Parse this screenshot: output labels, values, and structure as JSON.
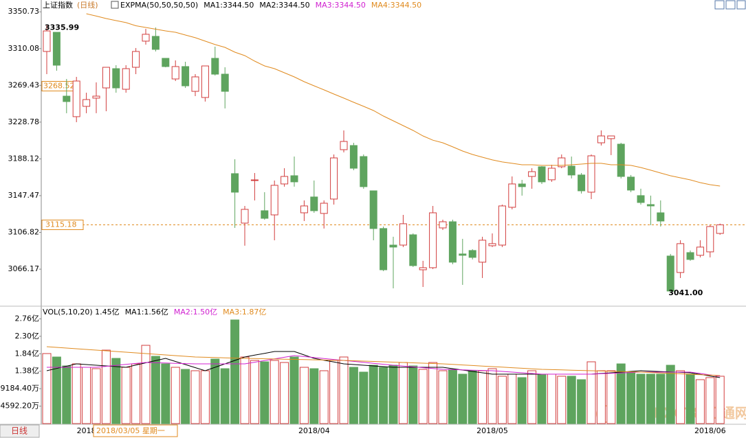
{
  "chart_data": [
    {
      "type": "candlestick",
      "title": "上证指数",
      "period": "(日线)",
      "legend_texts": [
        {
          "text": "EXPMA(50,50,50,50)",
          "color": "#000000"
        },
        {
          "text": "MA1:3344.50",
          "color": "#000000"
        },
        {
          "text": "MA2:3344.50",
          "color": "#000000"
        },
        {
          "text": "MA3:3344.50",
          "color": "#d020d0"
        },
        {
          "text": "MA4:3344.50",
          "color": "#e08a1e"
        }
      ],
      "categories": [
        null,
        null,
        null,
        null,
        "2018",
        null,
        null,
        null,
        null,
        null,
        null,
        null,
        null,
        null,
        null,
        null,
        null,
        null,
        null,
        null,
        null,
        null,
        null,
        null,
        null,
        null,
        null,
        "2018/04",
        null,
        null,
        null,
        null,
        null,
        null,
        null,
        null,
        null,
        null,
        null,
        null,
        null,
        null,
        null,
        null,
        null,
        "2018/05",
        null,
        null,
        null,
        null,
        null,
        null,
        null,
        null,
        null,
        null,
        null,
        null,
        null,
        null,
        null,
        null,
        null,
        null,
        null,
        null,
        null,
        "2018/06",
        null
      ],
      "open": [
        3306.9,
        3328.1,
        3257.5,
        3234.8,
        3246.2,
        3255.3,
        3266.6,
        3287.9,
        3265.1,
        3289.4,
        3318.3,
        3323.6,
        3299.3,
        3276.5,
        3290.2,
        3262.8,
        3256.0,
        3299.3,
        3281.8,
        3171.8,
        3117.1,
        3164.2,
        3130.8,
        3126.2,
        3160.4,
        3169.5,
        3128.5,
        3146.0,
        3127.8,
        3143.7,
        3198.3,
        3202.9,
        3190.7,
        3152.8,
        3111.1,
        3092.8,
        3092.8,
        3104.2,
        3065.5,
        3067.8,
        3111.8,
        3118.6,
        3083.0,
        3086.8,
        3073.9,
        3092.1,
        3092.8,
        3134.6,
        3160.4,
        3168.7,
        3179.4,
        3165.0,
        3179.4,
        3180.1,
        3170.3,
        3151.3,
        3205.9,
        3210.5,
        3204.4,
        3168.0,
        3147.5,
        3137.6,
        3128.5,
        3080.7,
        3062.5,
        3084.5,
        3081.5,
        3085.3,
        3105.7
      ],
      "high": [
        3335.99,
        3328.1,
        3276.5,
        3278.8,
        3261.3,
        3272.7,
        3289.4,
        3291.7,
        3291.7,
        3310.7,
        3331.9,
        3333.4,
        3299.3,
        3297.0,
        3295.5,
        3281.8,
        3290.9,
        3312.2,
        3289.4,
        3187.7,
        3136.1,
        3172.5,
        3151.3,
        3164.2,
        3177.8,
        3190.7,
        3142.2,
        3164.2,
        3142.2,
        3193.0,
        3219.6,
        3205.9,
        3193.0,
        3152.8,
        3113.3,
        3102.0,
        3126.2,
        3105.7,
        3075.4,
        3136.1,
        3120.9,
        3120.9,
        3099.7,
        3088.3,
        3102.0,
        3105.7,
        3137.6,
        3168.7,
        3164.9,
        3177.8,
        3180.1,
        3181.6,
        3193.0,
        3190.7,
        3172.5,
        3193.0,
        3219.6,
        3213.5,
        3205.9,
        3170.3,
        3155.1,
        3147.5,
        3142.2,
        3083.0,
        3098.2,
        3086.8,
        3098.2,
        3114.8,
        3116.6
      ],
      "low": [
        3281.8,
        3285.6,
        3238.6,
        3228.7,
        3238.6,
        3238.6,
        3240.8,
        3261.3,
        3261.3,
        3281.8,
        3314.5,
        3306.9,
        3289.4,
        3274.2,
        3266.6,
        3257.5,
        3251.5,
        3280.3,
        3243.9,
        3111.8,
        3092.1,
        3142.2,
        3120.9,
        3098.1,
        3157.4,
        3157.4,
        3119.4,
        3128.5,
        3111.1,
        3137.6,
        3195.3,
        3175.6,
        3155.1,
        3098.1,
        3064.0,
        3045.0,
        3090.6,
        3068.6,
        3046.5,
        3066.3,
        3109.5,
        3071.6,
        3048.8,
        3076.9,
        3056.4,
        3090.6,
        3090.6,
        3132.3,
        3147.5,
        3155.1,
        3160.4,
        3162.7,
        3177.8,
        3166.5,
        3149.8,
        3143.7,
        3202.9,
        3192.3,
        3166.5,
        3151.3,
        3137.6,
        3114.8,
        3113.3,
        3041.0,
        3056.4,
        3075.4,
        3079.2,
        3079.2,
        3104.2
      ],
      "close": [
        3329.6,
        3291.7,
        3251.5,
        3274.2,
        3253.7,
        3257.5,
        3289.4,
        3266.6,
        3287.9,
        3306.9,
        3325.9,
        3309.2,
        3290.2,
        3290.2,
        3268.9,
        3278.8,
        3290.9,
        3281.8,
        3262.8,
        3151.3,
        3132.3,
        3164.9,
        3122.4,
        3158.9,
        3168.7,
        3162.7,
        3136.1,
        3130.8,
        3139.1,
        3189.2,
        3207.4,
        3177.8,
        3157.4,
        3111.1,
        3065.5,
        3090.6,
        3116.4,
        3070.1,
        3067.8,
        3128.5,
        3118.6,
        3073.9,
        3081.5,
        3079.2,
        3098.2,
        3094.4,
        3136.1,
        3160.4,
        3157.4,
        3174.0,
        3162.7,
        3177.8,
        3189.2,
        3170.3,
        3152.8,
        3191.5,
        3213.5,
        3213.5,
        3168.7,
        3153.6,
        3139.9,
        3136.1,
        3119.4,
        3042.0,
        3094.4,
        3076.9,
        3090.6,
        3113.3,
        3115.18
      ],
      "up_color": "#d23c3c",
      "down_color": "#5ea45e",
      "series": [
        {
          "name": "EXPMA",
          "color": "#e08a1e",
          "values": [
            null,
            null,
            null,
            null,
            3348.6,
            3346.0,
            3343.3,
            3341.0,
            3338.8,
            3335.3,
            3333.4,
            3331.5,
            3329.6,
            3328.1,
            3325.1,
            3322.1,
            3318.3,
            3314.5,
            3311.4,
            3306.1,
            3302.3,
            3296.2,
            3290.9,
            3287.9,
            3283.3,
            3278.8,
            3273.5,
            3268.9,
            3264.4,
            3259.8,
            3255.3,
            3250.7,
            3246.2,
            3241.6,
            3235.5,
            3230.2,
            3224.9,
            3219.6,
            3213.5,
            3208.8,
            3205.9,
            3201.4,
            3196.8,
            3193.0,
            3190.0,
            3187.0,
            3184.7,
            3183.2,
            3181.6,
            3181.6,
            3180.9,
            3180.9,
            3180.9,
            3181.6,
            3182.4,
            3183.2,
            3183.2,
            3181.6,
            3181.6,
            3180.9,
            3178.6,
            3175.6,
            3172.5,
            3169.5,
            3167.2,
            3164.9,
            3161.9,
            3159.6,
            3158.1
          ]
        }
      ],
      "ylim": [
        3026,
        3360
      ],
      "yticks": [
        3066.17,
        3106.82,
        3147.47,
        3188.12,
        3228.78,
        3269.43,
        3310.08,
        3350.73
      ],
      "last_price": 3115.18,
      "cursor_value": 3268.52,
      "high_label": "3335.99",
      "low_label": "3041.00",
      "cursor_date": "2018/03/05 星期一",
      "tab": "日线",
      "watermark": "FX678 汇通网"
    },
    {
      "type": "bar",
      "title": "VOL(5,10,20) 1.45亿",
      "values": [
        18421,
        17518,
        15170,
        15712,
        14809,
        14448,
        19324,
        17157,
        14809,
        15712,
        20588,
        17699,
        15712,
        14809,
        14267,
        13906,
        13906,
        16976,
        14448,
        27271,
        17518,
        16615,
        16254,
        16615,
        16073,
        17518,
        14809,
        14448,
        13906,
        16615,
        17518,
        14809,
        13545,
        15351,
        14809,
        15351,
        16073,
        15170,
        14267,
        16073,
        13906,
        14267,
        13003,
        13906,
        13906,
        14448,
        12461,
        13003,
        12100,
        13906,
        13003,
        13003,
        12461,
        12461,
        11558,
        16254,
        13906,
        13906,
        15712,
        13545,
        13003,
        13003,
        13003,
        15351,
        13906,
        13003,
        11558,
        12100,
        12461
      ],
      "series": [
        {
          "name": "MA1:1.56亿",
          "color": "#000000",
          "values": [
            13906,
            14508,
            15110,
            15712,
            15531,
            15351,
            15170,
            14990,
            14809,
            15396,
            15983,
            16570,
            17157,
            16344,
            15531,
            14719,
            13906,
            14809,
            15712,
            16615,
            17518,
            18000,
            18481,
            18963,
            18963,
            18963,
            18060,
            17157,
            16675,
            16194,
            15712,
            15531,
            15351,
            15170,
            14990,
            14809,
            14809,
            14809,
            14809,
            14809,
            14809,
            14448,
            14087,
            13726,
            13364,
            13003,
            13003,
            13003,
            13003,
            13003,
            13003,
            13003,
            13003,
            13003,
            13003,
            13003,
            13184,
            13364,
            13545,
            13726,
            13906,
            13798,
            13690,
            13581,
            13473,
            13364,
            12943,
            12521,
            12100
          ]
        },
        {
          "name": "MA2:1.50亿",
          "color": "#d020d0",
          "values": [
            14809,
            14809,
            14809,
            14809,
            14809,
            14809,
            15062,
            15315,
            15567,
            15820,
            16073,
            16001,
            15929,
            15856,
            15784,
            15712,
            15712,
            15712,
            15712,
            15712,
            15712,
            16145,
            16579,
            17012,
            17446,
            17879,
            17626,
            17374,
            17121,
            16868,
            16615,
            16362,
            16110,
            15857,
            15604,
            15351,
            15134,
            14917,
            14701,
            14484,
            14267,
            14195,
            14123,
            14051,
            13978,
            13906,
            13725,
            13545,
            13364,
            13184,
            13003,
            13003,
            13003,
            13003,
            13003,
            13003,
            13111,
            13220,
            13328,
            13437,
            13545,
            13545,
            13545,
            13545,
            13545,
            13545,
            13184,
            12822,
            12461
          ]
        },
        {
          "name": "MA3:1.87亿",
          "color": "#e08a1e",
          "values": [
            20227,
            20046,
            19866,
            19685,
            19505,
            19324,
            19143,
            18963,
            18782,
            18602,
            18421,
            18240,
            18060,
            17879,
            17699,
            17518,
            17446,
            17374,
            17302,
            17229,
            17157,
            17103,
            17049,
            16995,
            16941,
            16886,
            16832,
            16778,
            16724,
            16669,
            16615,
            16525,
            16434,
            16344,
            16254,
            16164,
            16073,
            15983,
            15893,
            15802,
            15712,
            15568,
            15423,
            15279,
            15134,
            14990,
            14845,
            14701,
            14556,
            14412,
            14267,
            14195,
            14123,
            14051,
            13978,
            13906,
            13834,
            13762,
            13690,
            13617,
            13545,
            13432,
            13319,
            13206,
            13093,
            12981,
            12868,
            12755,
            12642
          ]
        }
      ],
      "ylim": [
        0,
        29800
      ],
      "yticks": [
        {
          "value": 4592.2,
          "label": "4592.20万"
        },
        {
          "value": 9184.4,
          "label": "9184.40万"
        },
        {
          "value": 13776.6,
          "label": "1.38亿"
        },
        {
          "value": 18368.8,
          "label": "1.84亿"
        },
        {
          "value": 22961,
          "label": "2.30亿"
        },
        {
          "value": 27553.2,
          "label": "2.76亿"
        }
      ]
    }
  ]
}
